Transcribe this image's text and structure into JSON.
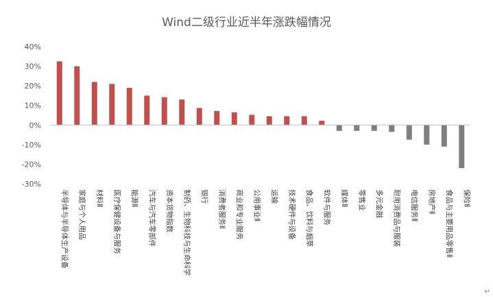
{
  "chart_data": {
    "type": "bar",
    "title": "Wind二级行业近半年涨跌幅情况",
    "categories": [
      "半导体与半导体生产设备",
      "家庭与个人用品",
      "材料Ⅱ",
      "医疗保健设备与服务",
      "能源Ⅱ",
      "汽车与汽车零部件",
      "资本货物指数",
      "制药、生物科技与生命科学",
      "银行",
      "消费者服务Ⅱ",
      "商业和专业服务",
      "公用事业Ⅱ",
      "运输",
      "技术硬件与设备",
      "食品、饮料与烟草",
      "软件与服务",
      "媒体Ⅱ",
      "零售业",
      "多元金融",
      "耐用消费品与服装",
      "电信服务Ⅱ",
      "房地产Ⅱ",
      "食品与主要用品零售Ⅱ",
      "保险Ⅱ"
    ],
    "values": [
      32.5,
      30,
      22,
      21,
      19,
      15,
      14.2,
      13,
      8.7,
      7.2,
      6.5,
      5.2,
      4.5,
      4.5,
      4.5,
      2.2,
      -3,
      -3,
      -3,
      -3.5,
      -7.5,
      -10,
      -11,
      -22
    ],
    "positive_color": "#c0504d",
    "negative_color": "#7f7f7f",
    "ylim": [
      -30,
      40
    ],
    "yticks": [
      -30,
      -20,
      -10,
      0,
      10,
      20,
      30,
      40
    ],
    "ytick_format": "%",
    "grid": false,
    "xlabel": "",
    "ylabel": ""
  },
  "footer_mark": "↵"
}
